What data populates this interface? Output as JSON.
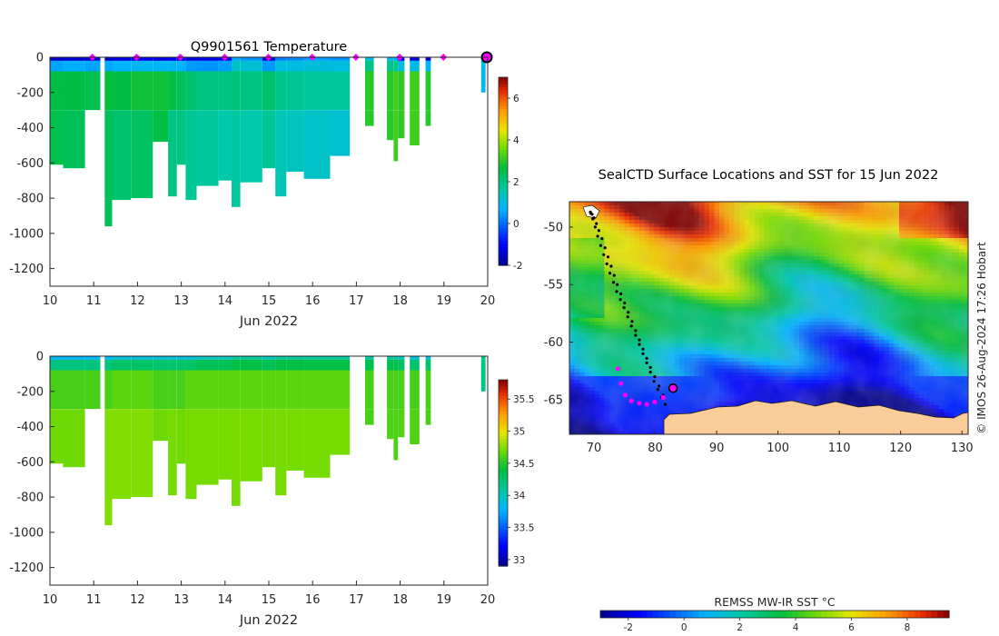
{
  "chart_data": [
    {
      "type": "heatmap",
      "title": "Q9901561  Temperature",
      "xlabel": "Jun 2022",
      "ylabel": "",
      "xlim": [
        10,
        20
      ],
      "ylim": [
        -1300,
        0
      ],
      "xticks": [
        10,
        11,
        12,
        13,
        14,
        15,
        16,
        17,
        18,
        19,
        20
      ],
      "yticks": [
        0,
        -200,
        -400,
        -600,
        -800,
        -1000,
        -1200
      ],
      "colorbar": {
        "min": -2,
        "max": 7,
        "ticks": [
          -2,
          0,
          2,
          4,
          6
        ]
      },
      "surface_markers_x": [
        10.97,
        11.98,
        12.98,
        13.99,
        14.99,
        15.99,
        16.99,
        17.99,
        18.99
      ],
      "last_profile_x": 19.98,
      "profiles": [
        {
          "x0": 10.0,
          "x1": 10.3,
          "bottom": -610,
          "near": -1.5,
          "mid": 2.6,
          "deep": 2.5
        },
        {
          "x0": 10.3,
          "x1": 10.8,
          "bottom": -630,
          "near": -1.3,
          "mid": 2.6,
          "deep": 2.4
        },
        {
          "x0": 10.8,
          "x1": 11.15,
          "bottom": -300,
          "near": -1.4,
          "mid": 2.5,
          "deep": 2.5
        },
        {
          "x0": 11.25,
          "x1": 11.42,
          "bottom": -960,
          "near": -1.5,
          "mid": 2.7,
          "deep": 2.4
        },
        {
          "x0": 11.42,
          "x1": 11.85,
          "bottom": -810,
          "near": -1.2,
          "mid": 2.6,
          "deep": 2.2
        },
        {
          "x0": 11.85,
          "x1": 12.35,
          "bottom": -800,
          "near": -1.1,
          "mid": 2.8,
          "deep": 2.3
        },
        {
          "x0": 12.35,
          "x1": 12.7,
          "bottom": -480,
          "near": -1.2,
          "mid": 2.8,
          "deep": 2.6
        },
        {
          "x0": 12.7,
          "x1": 12.9,
          "bottom": -790,
          "near": -1.0,
          "mid": 2.6,
          "deep": 2.0
        },
        {
          "x0": 12.9,
          "x1": 13.1,
          "bottom": -610,
          "near": -1.0,
          "mid": 2.4,
          "deep": 2.0
        },
        {
          "x0": 13.1,
          "x1": 13.35,
          "bottom": -810,
          "near": -1.3,
          "mid": 2.2,
          "deep": 1.8
        },
        {
          "x0": 13.35,
          "x1": 13.85,
          "bottom": -730,
          "near": -1.2,
          "mid": 2.0,
          "deep": 1.7
        },
        {
          "x0": 13.85,
          "x1": 14.15,
          "bottom": -700,
          "near": -1.0,
          "mid": 2.0,
          "deep": 1.6
        },
        {
          "x0": 14.15,
          "x1": 14.35,
          "bottom": -850,
          "near": 0.6,
          "mid": 2.1,
          "deep": 1.7
        },
        {
          "x0": 14.35,
          "x1": 14.85,
          "bottom": -710,
          "near": 0.4,
          "mid": 2.0,
          "deep": 1.6
        },
        {
          "x0": 14.85,
          "x1": 15.15,
          "bottom": -630,
          "near": -1.3,
          "mid": 2.2,
          "deep": 1.8
        },
        {
          "x0": 15.15,
          "x1": 15.4,
          "bottom": -790,
          "near": 0.2,
          "mid": 1.9,
          "deep": 1.5
        },
        {
          "x0": 15.4,
          "x1": 15.8,
          "bottom": -650,
          "near": 0.3,
          "mid": 1.8,
          "deep": 1.4
        },
        {
          "x0": 15.8,
          "x1": 16.4,
          "bottom": -690,
          "near": 0.5,
          "mid": 1.7,
          "deep": 1.3
        },
        {
          "x0": 16.4,
          "x1": 16.85,
          "bottom": -560,
          "near": 0.4,
          "mid": 1.7,
          "deep": 1.2
        },
        {
          "x0": 17.2,
          "x1": 17.4,
          "bottom": -390,
          "near": 1.0,
          "mid": 3.0,
          "deep": 3.0
        },
        {
          "x0": 17.7,
          "x1": 17.85,
          "bottom": -470,
          "near": 0.8,
          "mid": 3.0,
          "deep": 3.0
        },
        {
          "x0": 17.85,
          "x1": 17.95,
          "bottom": -590,
          "near": 0.6,
          "mid": 3.2,
          "deep": 3.2
        },
        {
          "x0": 17.95,
          "x1": 18.1,
          "bottom": -460,
          "near": -1.0,
          "mid": 3.1,
          "deep": 3.1
        },
        {
          "x0": 18.22,
          "x1": 18.44,
          "bottom": -500,
          "near": -1.3,
          "mid": 3.2,
          "deep": 3.2
        },
        {
          "x0": 18.58,
          "x1": 18.7,
          "bottom": -390,
          "near": -1.4,
          "mid": 3.0,
          "deep": 3.0
        },
        {
          "x0": 19.85,
          "x1": 19.95,
          "bottom": -200,
          "near": 0.9,
          "mid": 0.9,
          "deep": 0.9
        }
      ]
    },
    {
      "type": "heatmap",
      "title": "",
      "xlabel": "Jun 2022",
      "ylabel": "",
      "xlim": [
        10,
        20
      ],
      "ylim": [
        -1300,
        0
      ],
      "xticks": [
        10,
        11,
        12,
        13,
        14,
        15,
        16,
        17,
        18,
        19,
        20
      ],
      "yticks": [
        0,
        -200,
        -400,
        -600,
        -800,
        -1000,
        -1200
      ],
      "colorbar": {
        "min": 32.9,
        "max": 35.8,
        "ticks": [
          33,
          33.5,
          34,
          34.5,
          35,
          35.5
        ]
      },
      "profiles": [
        {
          "x0": 10.0,
          "x1": 10.3,
          "bottom": -610,
          "near": 33.8,
          "mid": 34.6,
          "deep": 34.7
        },
        {
          "x0": 10.3,
          "x1": 10.8,
          "bottom": -630,
          "near": 33.8,
          "mid": 34.6,
          "deep": 34.7
        },
        {
          "x0": 10.8,
          "x1": 11.15,
          "bottom": -300,
          "near": 33.8,
          "mid": 34.6,
          "deep": 34.6
        },
        {
          "x0": 11.25,
          "x1": 11.42,
          "bottom": -960,
          "near": 33.8,
          "mid": 34.6,
          "deep": 34.75
        },
        {
          "x0": 11.42,
          "x1": 11.85,
          "bottom": -810,
          "near": 33.9,
          "mid": 34.65,
          "deep": 34.75
        },
        {
          "x0": 11.85,
          "x1": 12.35,
          "bottom": -800,
          "near": 33.9,
          "mid": 34.65,
          "deep": 34.75
        },
        {
          "x0": 12.35,
          "x1": 12.7,
          "bottom": -480,
          "near": 33.9,
          "mid": 34.6,
          "deep": 34.7
        },
        {
          "x0": 12.7,
          "x1": 12.9,
          "bottom": -790,
          "near": 33.9,
          "mid": 34.6,
          "deep": 34.72
        },
        {
          "x0": 12.9,
          "x1": 13.1,
          "bottom": -610,
          "near": 33.9,
          "mid": 34.6,
          "deep": 34.7
        },
        {
          "x0": 13.1,
          "x1": 13.35,
          "bottom": -810,
          "near": 33.9,
          "mid": 34.65,
          "deep": 34.72
        },
        {
          "x0": 13.35,
          "x1": 13.85,
          "bottom": -730,
          "near": 34.0,
          "mid": 34.65,
          "deep": 34.72
        },
        {
          "x0": 13.85,
          "x1": 14.15,
          "bottom": -700,
          "near": 34.0,
          "mid": 34.65,
          "deep": 34.72
        },
        {
          "x0": 14.15,
          "x1": 14.35,
          "bottom": -850,
          "near": 34.1,
          "mid": 34.65,
          "deep": 34.72
        },
        {
          "x0": 14.35,
          "x1": 14.85,
          "bottom": -710,
          "near": 34.1,
          "mid": 34.65,
          "deep": 34.72
        },
        {
          "x0": 14.85,
          "x1": 15.15,
          "bottom": -630,
          "near": 34.0,
          "mid": 34.65,
          "deep": 34.72
        },
        {
          "x0": 15.15,
          "x1": 15.4,
          "bottom": -790,
          "near": 34.1,
          "mid": 34.65,
          "deep": 34.72
        },
        {
          "x0": 15.4,
          "x1": 15.8,
          "bottom": -650,
          "near": 34.1,
          "mid": 34.65,
          "deep": 34.72
        },
        {
          "x0": 15.8,
          "x1": 16.4,
          "bottom": -690,
          "near": 34.1,
          "mid": 34.65,
          "deep": 34.72
        },
        {
          "x0": 16.4,
          "x1": 16.85,
          "bottom": -560,
          "near": 34.1,
          "mid": 34.65,
          "deep": 34.72
        },
        {
          "x0": 17.2,
          "x1": 17.4,
          "bottom": -390,
          "near": 34.1,
          "mid": 34.6,
          "deep": 34.6
        },
        {
          "x0": 17.7,
          "x1": 17.85,
          "bottom": -470,
          "near": 34.1,
          "mid": 34.6,
          "deep": 34.62
        },
        {
          "x0": 17.85,
          "x1": 17.95,
          "bottom": -590,
          "near": 34.1,
          "mid": 34.6,
          "deep": 34.62
        },
        {
          "x0": 17.95,
          "x1": 18.1,
          "bottom": -460,
          "near": 34.0,
          "mid": 34.6,
          "deep": 34.62
        },
        {
          "x0": 18.22,
          "x1": 18.44,
          "bottom": -500,
          "near": 33.9,
          "mid": 34.6,
          "deep": 34.62
        },
        {
          "x0": 18.58,
          "x1": 18.7,
          "bottom": -390,
          "near": 33.9,
          "mid": 34.6,
          "deep": 34.6
        },
        {
          "x0": 19.85,
          "x1": 19.95,
          "bottom": -200,
          "near": 34.2,
          "mid": 34.2,
          "deep": 34.2
        }
      ]
    },
    {
      "type": "heatmap",
      "title": "SealCTD Surface Locations and SST for 15 Jun 2022",
      "xlabel": "",
      "ylabel": "",
      "xlim": [
        66,
        131
      ],
      "ylim": [
        -68,
        -47.8
      ],
      "xticks": [
        70,
        80,
        90,
        100,
        110,
        120,
        130
      ],
      "yticks": [
        -50,
        -55,
        -60,
        -65
      ],
      "side_text": "© IMOS 26-Aug-2024 17:26 Hobart",
      "colorbar_label": "REMSS MW-IR SST °C",
      "colorbar": {
        "min": -3,
        "max": 9.5,
        "ticks": [
          -2,
          0,
          2,
          4,
          6,
          8
        ]
      },
      "track_lon": [
        69.5,
        69.8,
        70.2,
        70.6,
        71.1,
        71.6,
        72.1,
        72.6,
        73.2,
        73.7,
        74.3,
        74.9,
        75.5,
        76.1,
        76.8,
        77.4,
        78.0,
        78.6,
        79.2,
        79.8,
        80.4,
        81.0,
        81.6,
        81.3,
        80.6,
        79.9,
        79.2,
        78.6,
        78.0,
        77.4,
        76.8,
        76.2,
        75.6,
        75.0,
        74.4,
        73.8,
        73.3,
        72.8,
        72.3,
        71.8,
        71.3,
        70.8,
        70.4,
        70.0,
        69.7,
        69.4
      ],
      "track_lat": [
        -48.8,
        -49.3,
        -50.0,
        -50.8,
        -51.6,
        -52.4,
        -53.2,
        -54.0,
        -54.8,
        -55.6,
        -56.3,
        -57.0,
        -57.8,
        -58.6,
        -59.4,
        -60.2,
        -61.0,
        -61.8,
        -62.6,
        -63.4,
        -64.1,
        -64.8,
        -65.4,
        -64.6,
        -63.8,
        -63.0,
        -62.2,
        -61.4,
        -60.6,
        -59.8,
        -59.0,
        -58.2,
        -57.4,
        -56.6,
        -55.8,
        -55.0,
        -54.2,
        -53.4,
        -52.6,
        -51.8,
        -51.0,
        -50.3,
        -49.7,
        -49.2,
        -48.9,
        -48.7
      ],
      "recent_lon": [
        73.9,
        74.4,
        75.1,
        76.1,
        77.4,
        78.6,
        79.9,
        81.3
      ],
      "recent_lat": [
        -62.3,
        -63.6,
        -64.6,
        -65.1,
        -65.3,
        -65.4,
        -65.2,
        -64.8
      ],
      "current_lon": 82.9,
      "current_lat": -64.0
    }
  ]
}
